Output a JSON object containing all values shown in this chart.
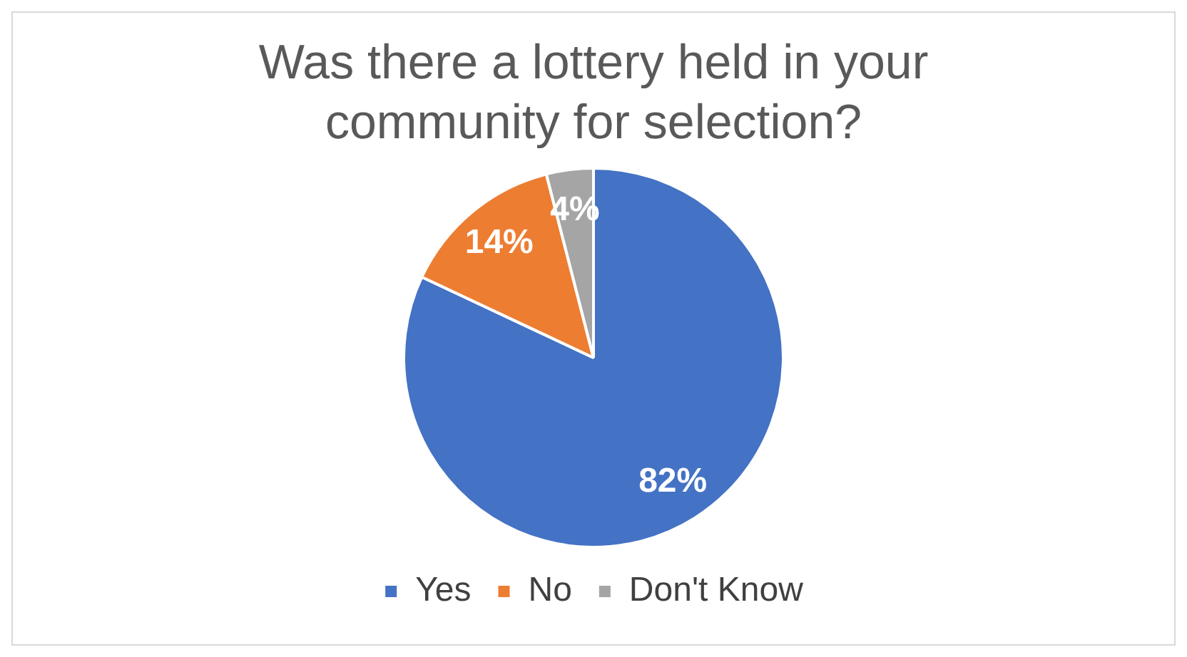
{
  "chart_data": {
    "type": "pie",
    "title": "Was there a lottery held in your community for selection?",
    "categories": [
      "Yes",
      "No",
      "Don't Know"
    ],
    "values": [
      82,
      14,
      4
    ],
    "colors": [
      "#4472c4",
      "#ed7d31",
      "#a5a5a5"
    ],
    "value_labels": [
      "82%",
      "14%",
      "4%"
    ],
    "legend": "bottom"
  }
}
